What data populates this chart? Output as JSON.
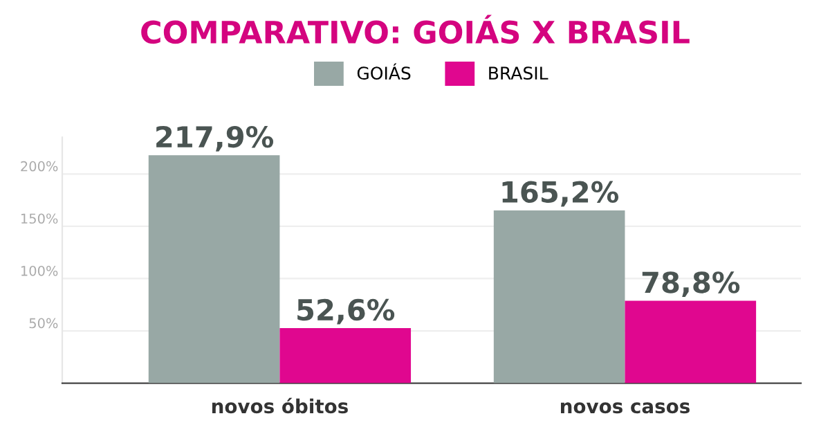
{
  "chart_data": {
    "type": "bar",
    "title": "COMPARATIVO: GOIÁS X BRASIL",
    "categories": [
      "novos óbitos",
      "novos casos"
    ],
    "series": [
      {
        "name": "GOIÁS",
        "color": "#98a8a5",
        "values": [
          217.9,
          165.2
        ],
        "value_labels": [
          "217,9%",
          "165,2%"
        ]
      },
      {
        "name": "BRASIL",
        "color": "#e0078f",
        "values": [
          52.6,
          78.8
        ],
        "value_labels": [
          "52,6%",
          "78,8%"
        ]
      }
    ],
    "ylim": [
      0,
      235
    ],
    "yticks": [
      {
        "value": 50,
        "label": "50%"
      },
      {
        "value": 100,
        "label": "100%"
      },
      {
        "value": 150,
        "label": "150%"
      },
      {
        "value": 200,
        "label": "200%"
      }
    ],
    "grid": "y",
    "legend": "top"
  }
}
